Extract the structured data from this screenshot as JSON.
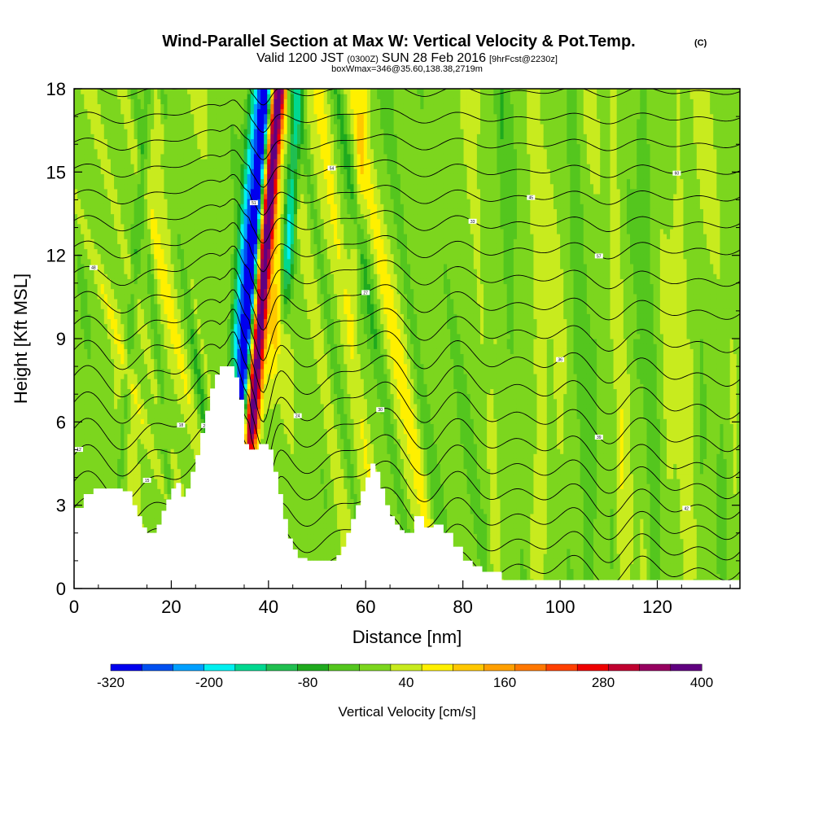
{
  "chart_data": {
    "type": "heatmap",
    "title": "Wind-Parallel Section at Max W: Vertical Velocity & Pot.Temp.",
    "title_mark": "(C)",
    "subtitle_parts": [
      "Valid 1200 JST",
      "(0300Z)",
      "SUN 28 Feb 2016",
      "[9hrFcst@2230z]"
    ],
    "note": "boxWmax=346@35.60,138.38,2719m",
    "xlabel": "Distance [nm]",
    "ylabel": "Height [Kft MSL]",
    "xlim": [
      0,
      137
    ],
    "ylim": [
      0,
      18
    ],
    "xticks": [
      0,
      20,
      40,
      60,
      80,
      100,
      120
    ],
    "yticks": [
      0,
      3,
      6,
      9,
      12,
      15,
      18
    ],
    "colorbar": {
      "title": "Vertical Velocity [cm/s]",
      "levels": [
        -320,
        -280,
        -240,
        -200,
        -160,
        -120,
        -80,
        -40,
        0,
        40,
        80,
        120,
        160,
        200,
        240,
        280,
        320,
        360,
        400
      ],
      "labels": [
        -320,
        -200,
        -80,
        40,
        160,
        280,
        400
      ],
      "colors": [
        "#0000ee",
        "#0050f0",
        "#00a0ff",
        "#00f0f0",
        "#00d890",
        "#20bf50",
        "#1faa1e",
        "#54c61e",
        "#7cd61e",
        "#c8eb1e",
        "#fff000",
        "#ffc800",
        "#ffa000",
        "#ff7800",
        "#ff4000",
        "#ee0000",
        "#c00030",
        "#960060",
        "#600080"
      ]
    },
    "terrain_profile": {
      "distance_nm": [
        0,
        2,
        4,
        6,
        8,
        10,
        12,
        13,
        14,
        15,
        16,
        17,
        18,
        19,
        20,
        21,
        22,
        23,
        24,
        25,
        26,
        27,
        28,
        29,
        30,
        31,
        32,
        33,
        34,
        35,
        36,
        37,
        38,
        39,
        40,
        41,
        42,
        43,
        44,
        45,
        46,
        48,
        50,
        52,
        54,
        55,
        56,
        57,
        58,
        59,
        60,
        61,
        62,
        63,
        64,
        65,
        66,
        67,
        68,
        70,
        72,
        74,
        76,
        78,
        80,
        82,
        84,
        86,
        88,
        90,
        95,
        100,
        110,
        120,
        130,
        137
      ],
      "height_kft": [
        2.9,
        3.4,
        3.6,
        3.6,
        3.6,
        3.5,
        3.0,
        2.6,
        2.2,
        2.0,
        2.0,
        2.3,
        2.8,
        3.2,
        3.6,
        3.8,
        3.3,
        3.6,
        4.2,
        4.8,
        5.6,
        6.4,
        7.2,
        7.7,
        8.0,
        8.0,
        8.0,
        7.6,
        6.8,
        5.2,
        5.0,
        5.0,
        5.2,
        5.2,
        5.0,
        4.2,
        3.4,
        2.5,
        1.8,
        1.4,
        1.1,
        1.0,
        1.0,
        1.0,
        1.2,
        1.5,
        2.0,
        2.5,
        3.0,
        3.5,
        4.0,
        4.5,
        4.2,
        3.6,
        3.0,
        2.6,
        2.3,
        2.1,
        2.0,
        2.6,
        2.2,
        2.3,
        2.0,
        1.5,
        1.0,
        0.8,
        0.6,
        0.6,
        0.3,
        0.3,
        0.3,
        0.3,
        0.3,
        0.3,
        0.3,
        0.3
      ]
    },
    "contour_labels": [
      "12",
      "15",
      "18",
      "21",
      "24",
      "27",
      "30",
      "33",
      "36",
      "39",
      "42",
      "45",
      "48",
      "51",
      "54",
      "57",
      "60"
    ]
  }
}
